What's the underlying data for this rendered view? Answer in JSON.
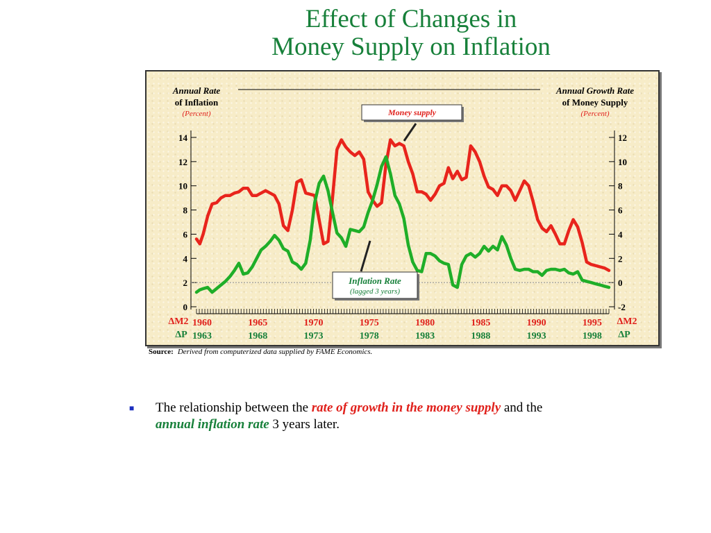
{
  "title": {
    "line1": "Effect of Changes in",
    "line2": "Money Supply on Inflation"
  },
  "colors": {
    "money_supply": "#e8241c",
    "inflation": "#1fae28",
    "title": "#17803a",
    "panel": "#f7ecc8"
  },
  "left_axis_label": {
    "line1": "Annual Rate",
    "line2": "of Inflation",
    "line3": "(Percent)"
  },
  "right_axis_label": {
    "line1": "Annual Growth Rate",
    "line2": "of Money Supply",
    "line3": "(Percent)"
  },
  "left_row_labels": {
    "top": "ΔM2",
    "bottom": "ΔP"
  },
  "right_row_labels": {
    "top": "ΔM2",
    "bottom": "ΔP"
  },
  "callouts": {
    "money_supply": "Money supply",
    "inflation_line1": "Inflation Rate",
    "inflation_line2": "(lagged 3 years)"
  },
  "source": {
    "label": "Source:",
    "text": "Derived from computerized data supplied by FAME Economics."
  },
  "bullet": {
    "part1": "The relationship between the ",
    "emphasis1": "rate of growth in the money supply",
    "part2": " and the",
    "emphasis2": "annual inflation rate",
    "part3": " 3 years later."
  },
  "chart_data": {
    "type": "line",
    "left_axis": {
      "ticks": [
        "0",
        "2",
        "4",
        "6",
        "8",
        "10",
        "12",
        "14"
      ],
      "ylim": [
        0,
        14
      ]
    },
    "right_axis": {
      "ticks": [
        "-2",
        "0",
        "2",
        "4",
        "6",
        "8",
        "10",
        "12"
      ],
      "ylim": [
        -2,
        12
      ]
    },
    "x_ticks_top": [
      "1960",
      "1965",
      "1970",
      "1975",
      "1980",
      "1985",
      "1990",
      "1995"
    ],
    "x_ticks_bottom": [
      "1963",
      "1968",
      "1973",
      "1978",
      "1983",
      "1988",
      "1993",
      "1998"
    ],
    "xlim": [
      1960,
      1997
    ],
    "series": [
      {
        "name": "Money supply",
        "axis": "right",
        "x": [
          1960.0,
          1960.3,
          1960.6,
          1961.0,
          1961.4,
          1961.8,
          1962.2,
          1962.6,
          1963.0,
          1963.4,
          1963.8,
          1964.2,
          1964.6,
          1965.0,
          1965.4,
          1965.8,
          1966.2,
          1966.6,
          1967.0,
          1967.4,
          1967.8,
          1968.2,
          1968.6,
          1969.0,
          1969.4,
          1969.8,
          1970.2,
          1970.6,
          1971.0,
          1971.4,
          1971.8,
          1972.2,
          1972.6,
          1973.0,
          1973.4,
          1973.8,
          1974.2,
          1974.6,
          1975.0,
          1975.4,
          1975.8,
          1976.2,
          1976.6,
          1977.0,
          1977.4,
          1977.8,
          1978.2,
          1978.6,
          1979.0,
          1979.4,
          1979.8,
          1980.2,
          1980.6,
          1981.0,
          1981.4,
          1981.8,
          1982.2,
          1982.6,
          1983.0,
          1983.4,
          1983.8,
          1984.2,
          1984.6,
          1985.0,
          1985.4,
          1985.8,
          1986.2,
          1986.6,
          1987.0,
          1987.4,
          1987.8,
          1988.2,
          1988.6,
          1989.0,
          1989.4,
          1989.8,
          1990.2,
          1990.6,
          1991.0,
          1991.4,
          1991.8,
          1992.2,
          1992.6,
          1993.0,
          1993.4,
          1993.8,
          1994.2,
          1994.6,
          1995.0,
          1995.4,
          1995.8,
          1996.2,
          1996.6,
          1997.0
        ],
        "values": [
          3.6,
          3.2,
          4.0,
          5.5,
          6.5,
          6.6,
          7.0,
          7.2,
          7.2,
          7.4,
          7.5,
          7.8,
          7.8,
          7.2,
          7.2,
          7.4,
          7.6,
          7.4,
          7.2,
          6.5,
          4.7,
          4.3,
          6.0,
          8.3,
          8.5,
          7.4,
          7.3,
          7.2,
          5.2,
          3.2,
          3.4,
          7.0,
          11.0,
          11.8,
          11.2,
          10.8,
          10.5,
          10.8,
          10.2,
          7.5,
          6.8,
          6.3,
          6.6,
          9.8,
          11.8,
          11.3,
          11.5,
          11.3,
          10.0,
          9.0,
          7.5,
          7.5,
          7.3,
          6.8,
          7.3,
          8.0,
          8.2,
          9.5,
          8.6,
          9.2,
          8.5,
          8.7,
          11.3,
          10.8,
          10.0,
          8.8,
          7.9,
          7.7,
          7.2,
          8.0,
          8.0,
          7.6,
          6.8,
          7.6,
          8.4,
          8.0,
          6.7,
          5.2,
          4.5,
          4.2,
          4.7,
          4.0,
          3.2,
          3.2,
          4.3,
          5.2,
          4.6,
          3.3,
          1.7,
          1.5,
          1.4,
          1.3,
          1.2,
          1.0
        ]
      },
      {
        "name": "Inflation Rate (lagged 3 years)",
        "axis": "left",
        "x": [
          1960.0,
          1960.3,
          1960.6,
          1961.0,
          1961.4,
          1961.8,
          1962.2,
          1962.6,
          1963.0,
          1963.4,
          1963.8,
          1964.2,
          1964.6,
          1965.0,
          1965.4,
          1965.8,
          1966.2,
          1966.6,
          1967.0,
          1967.4,
          1967.8,
          1968.2,
          1968.6,
          1969.0,
          1969.4,
          1969.8,
          1970.2,
          1970.6,
          1971.0,
          1971.4,
          1971.8,
          1972.2,
          1972.6,
          1973.0,
          1973.4,
          1973.8,
          1974.2,
          1974.6,
          1975.0,
          1975.4,
          1975.8,
          1976.2,
          1976.6,
          1977.0,
          1977.4,
          1977.8,
          1978.2,
          1978.6,
          1979.0,
          1979.4,
          1979.8,
          1980.2,
          1980.6,
          1981.0,
          1981.4,
          1981.8,
          1982.2,
          1982.6,
          1983.0,
          1983.4,
          1983.8,
          1984.2,
          1984.6,
          1985.0,
          1985.4,
          1985.8,
          1986.2,
          1986.6,
          1987.0,
          1987.4,
          1987.8,
          1988.2,
          1988.6,
          1989.0,
          1989.4,
          1989.8,
          1990.2,
          1990.6,
          1991.0,
          1991.4,
          1991.8,
          1992.2,
          1992.6,
          1993.0,
          1993.4,
          1993.8,
          1994.2,
          1994.6,
          1995.0,
          1995.4,
          1995.8,
          1996.2,
          1996.6,
          1997.0
        ],
        "values": [
          1.2,
          1.4,
          1.5,
          1.6,
          1.2,
          1.5,
          1.8,
          2.1,
          2.5,
          3.0,
          3.6,
          2.7,
          2.8,
          3.3,
          4.0,
          4.7,
          5.0,
          5.4,
          5.9,
          5.5,
          4.8,
          4.6,
          3.7,
          3.5,
          3.1,
          3.6,
          5.5,
          8.6,
          10.2,
          10.8,
          9.6,
          7.8,
          6.1,
          5.7,
          5.0,
          6.4,
          6.3,
          6.2,
          6.6,
          7.8,
          8.8,
          10.1,
          11.6,
          12.4,
          11.0,
          9.2,
          8.5,
          7.3,
          5.1,
          3.7,
          3.0,
          2.9,
          4.4,
          4.4,
          4.2,
          3.8,
          3.6,
          3.5,
          1.8,
          1.6,
          3.5,
          4.2,
          4.4,
          4.1,
          4.4,
          5.0,
          4.6,
          5.0,
          4.7,
          5.8,
          5.1,
          4.0,
          3.1,
          3.0,
          3.1,
          3.1,
          2.9,
          2.9,
          2.6,
          3.0,
          3.1,
          3.1,
          3.0,
          3.1,
          2.8,
          2.7,
          2.9,
          2.2,
          2.1,
          2.0,
          1.9,
          1.8,
          1.7,
          1.6
        ]
      }
    ]
  }
}
